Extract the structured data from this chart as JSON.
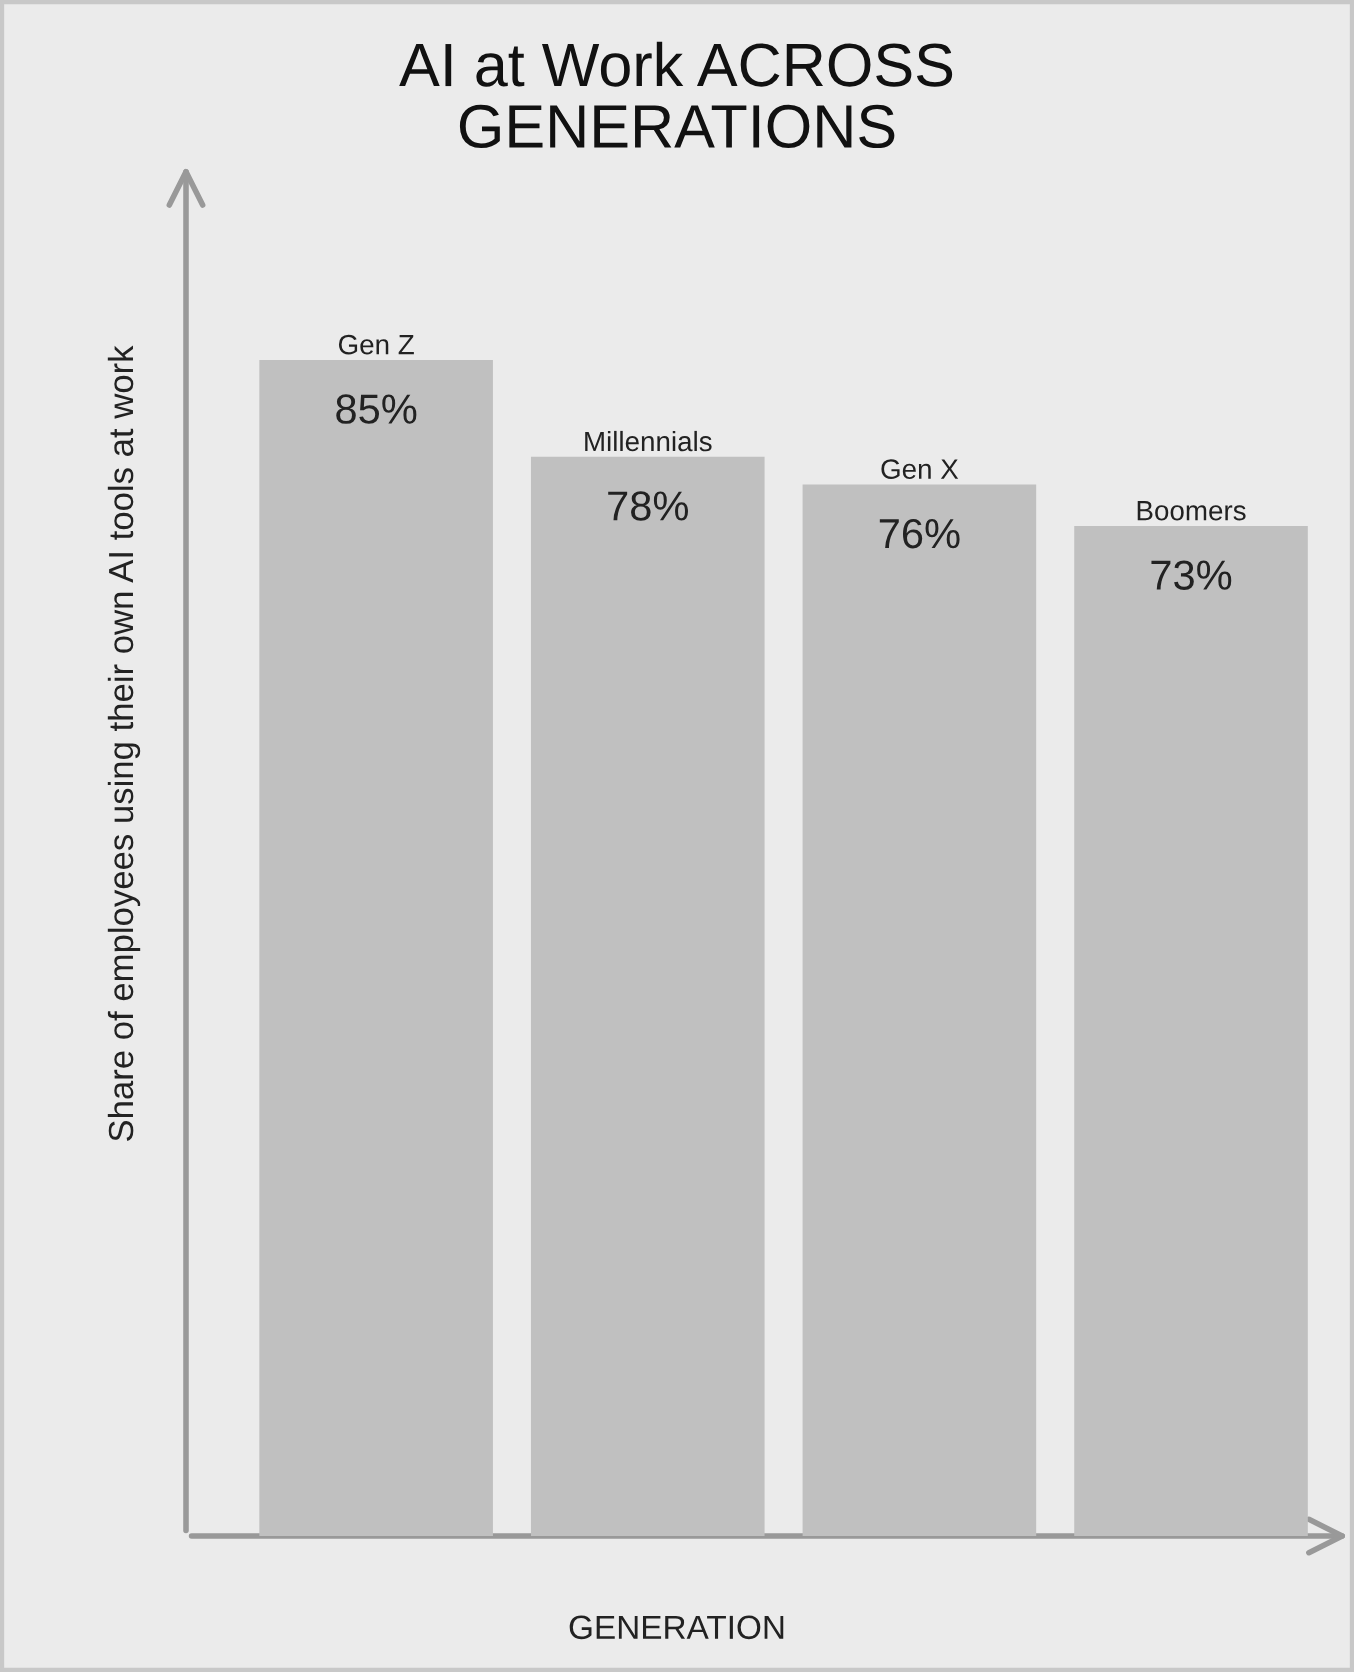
{
  "chart_data": {
    "type": "bar",
    "title": "AI at Work ACROSS\nGENERATIONS",
    "xlabel": "GENERATION",
    "ylabel": "Share of employees using their own AI tools at work",
    "categories": [
      "Gen Z",
      "Millennials",
      "Gen X",
      "Boomers"
    ],
    "values": [
      85,
      78,
      76,
      73
    ],
    "value_labels": [
      "85%",
      "78%",
      "76%",
      "73%"
    ],
    "color": "#c0c0c0"
  }
}
